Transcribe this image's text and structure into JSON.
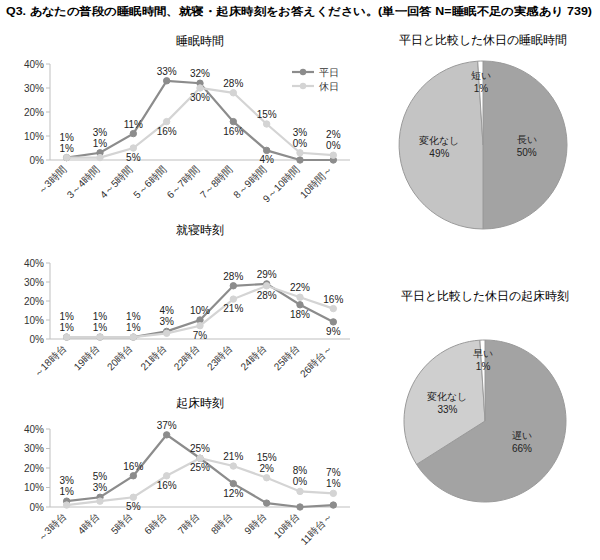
{
  "header": {
    "title": "Q3. あなたの普段の睡眠時間、就寝・起床時刻をお答えください。(単一回答 N=睡眠不足の実感あり 739)"
  },
  "chart_data": [
    {
      "type": "line",
      "title": "睡眠時間",
      "categories": [
        "～3時間",
        "3～4時間",
        "4～5時間",
        "5～6時間",
        "6～7時間",
        "7～8時間",
        "8～9時間",
        "9～10時間",
        "10時間～"
      ],
      "series": [
        {
          "name": "平日",
          "color": "#8c8c8c",
          "marker": "circle",
          "values": [
            1,
            3,
            11,
            33,
            32,
            16,
            4,
            0,
            0
          ],
          "value_labels": [
            "1%",
            "3%",
            "11%",
            "33%",
            "32%",
            "16%",
            "4%",
            "0%",
            "0%"
          ]
        },
        {
          "name": "休日",
          "color": "#d4d4d4",
          "marker": "circle",
          "values": [
            1,
            1,
            5,
            16,
            30,
            28,
            15,
            3,
            2
          ],
          "value_labels": [
            "1%",
            "1%",
            "5%",
            "16%",
            "30%",
            "28%",
            "15%",
            "3%",
            "2%"
          ]
        }
      ],
      "ylim": [
        0,
        40
      ],
      "yticks": [
        {
          "value": 0,
          "label": "0%"
        },
        {
          "value": 10,
          "label": "10%"
        },
        {
          "value": 20,
          "label": "20%"
        },
        {
          "value": 30,
          "label": "30%"
        },
        {
          "value": 40,
          "label": "40%"
        }
      ],
      "grid": false,
      "legend": "upper right",
      "data_labels": true
    },
    {
      "type": "line",
      "title": "就寝時刻",
      "categories": [
        "～18時台",
        "19時台",
        "20時台",
        "21時台",
        "22時台",
        "23時台",
        "24時台",
        "25時台",
        "26時台～"
      ],
      "series": [
        {
          "color": "#8c8c8c",
          "marker": "circle",
          "values": [
            1,
            1,
            1,
            4,
            10,
            28,
            29,
            18,
            9
          ],
          "value_labels": [
            "1%",
            "1%",
            "1%",
            "4%",
            "10%",
            "28%",
            "29%",
            "18%",
            "9%"
          ]
        },
        {
          "color": "#d4d4d4",
          "marker": "circle",
          "values": [
            1,
            1,
            1,
            3,
            7,
            21,
            28,
            22,
            16
          ],
          "value_labels": [
            "1%",
            "1%",
            "1%",
            "3%",
            "7%",
            "21%",
            "28%",
            "22%",
            "16%"
          ]
        }
      ],
      "ylim": [
        0,
        40
      ],
      "yticks": [
        {
          "value": 0,
          "label": "0%"
        },
        {
          "value": 10,
          "label": "10%"
        },
        {
          "value": 20,
          "label": "20%"
        },
        {
          "value": 30,
          "label": "30%"
        },
        {
          "value": 40,
          "label": "40%"
        }
      ],
      "grid": false,
      "data_labels": true
    },
    {
      "type": "line",
      "title": "起床時刻",
      "categories": [
        "～3時台",
        "4時台",
        "5時台",
        "6時台",
        "7時台",
        "8時台",
        "9時台",
        "10時台",
        "11時台～"
      ],
      "series": [
        {
          "color": "#8c8c8c",
          "marker": "circle",
          "values": [
            3,
            5,
            16,
            37,
            25,
            12,
            2,
            0,
            1
          ],
          "value_labels": [
            "3%",
            "5%",
            "16%",
            "37%",
            "25%",
            "12%",
            "2%",
            "0%",
            "1%"
          ]
        },
        {
          "color": "#d4d4d4",
          "marker": "circle",
          "values": [
            1,
            3,
            5,
            16,
            25,
            21,
            15,
            8,
            7
          ],
          "value_labels": [
            "1%",
            "3%",
            "5%",
            "16%",
            "25%",
            "21%",
            "15%",
            "8%",
            "7%"
          ]
        }
      ],
      "ylim": [
        0,
        40
      ],
      "yticks": [
        {
          "value": 0,
          "label": "0%"
        },
        {
          "value": 10,
          "label": "10%"
        },
        {
          "value": 20,
          "label": "20%"
        },
        {
          "value": 30,
          "label": "30%"
        },
        {
          "value": 40,
          "label": "40%"
        }
      ],
      "grid": false,
      "data_labels": true
    },
    {
      "type": "pie",
      "title": "平日と比較した休日の睡眠時間",
      "categories": [
        "長い",
        "変化なし",
        "短い"
      ],
      "values": [
        50,
        49,
        1
      ],
      "value_labels": [
        "50%",
        "49%",
        "1%"
      ],
      "colors": [
        "#a3a3a3",
        "#c4c4c4",
        "#ffffff"
      ],
      "data_labels": true
    },
    {
      "type": "pie",
      "title": "平日と比較した休日の起床時刻",
      "categories": [
        "遅い",
        "変化なし",
        "早い"
      ],
      "values": [
        66,
        33,
        1
      ],
      "value_labels": [
        "66%",
        "33%",
        "1%"
      ],
      "colors": [
        "#a3a3a3",
        "#cfcfcf",
        "#ffffff"
      ],
      "data_labels": true
    }
  ]
}
